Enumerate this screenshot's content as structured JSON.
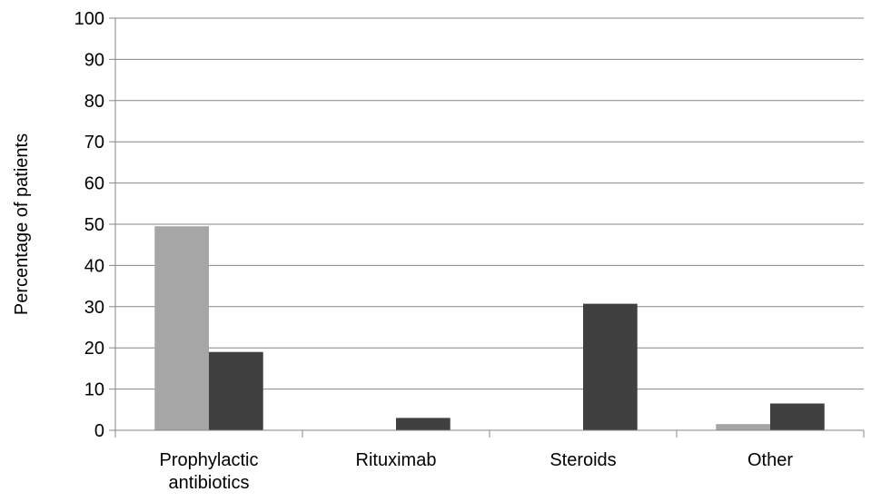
{
  "chart_data": {
    "type": "bar",
    "categories": [
      "Prophylactic antibiotics",
      "Rituximab",
      "Steroids",
      "Other"
    ],
    "category_lines": [
      [
        "Prophylactic",
        "antibiotics"
      ],
      [
        "Rituximab"
      ],
      [
        "Steroids"
      ],
      [
        "Other"
      ]
    ],
    "series": [
      {
        "values": [
          49.5,
          0,
          0,
          1.5
        ],
        "color": "#a6a6a6"
      },
      {
        "values": [
          19,
          3,
          30.7,
          6.5
        ],
        "color": "#404040"
      }
    ],
    "title": "",
    "xlabel": "",
    "ylabel": "Percentage of patients",
    "ylim": [
      0,
      100
    ],
    "yticks": [
      "0",
      "10",
      "20",
      "30",
      "40",
      "50",
      "60",
      "70",
      "80",
      "90",
      "100"
    ],
    "grid": true,
    "legend": "none"
  }
}
